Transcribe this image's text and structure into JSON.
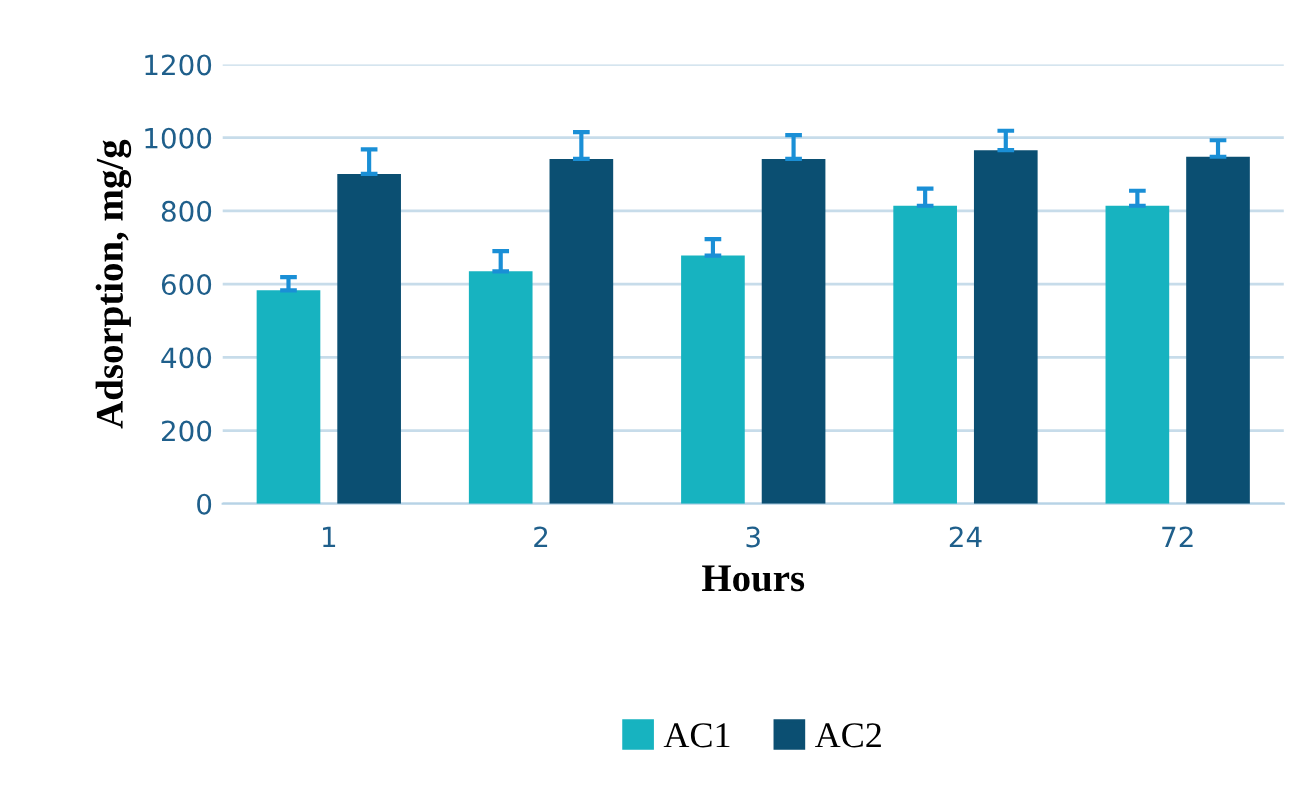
{
  "chart_data": {
    "type": "bar",
    "xlabel": "Hours",
    "ylabel": "Adsorption, mg/g",
    "categories": [
      "1",
      "2",
      "3",
      "24",
      "72"
    ],
    "series": [
      {
        "name": "AC1",
        "color": "#17b3c0",
        "values": [
          583,
          635,
          678,
          814,
          814
        ],
        "errors": [
          [
            583,
            619
          ],
          [
            635,
            690
          ],
          [
            678,
            723
          ],
          [
            814,
            861
          ],
          [
            814,
            855
          ]
        ]
      },
      {
        "name": "AC2",
        "color": "#0b4f72",
        "values": [
          901,
          942,
          942,
          966,
          948
        ],
        "errors": [
          [
            901,
            968
          ],
          [
            942,
            1015
          ],
          [
            942,
            1007
          ],
          [
            966,
            1019
          ],
          [
            948,
            993
          ]
        ]
      }
    ],
    "ylim": [
      0,
      1200
    ],
    "yticks": [
      0,
      200,
      400,
      600,
      800,
      1000,
      1200
    ],
    "grid": "y",
    "legend": "bottom"
  }
}
